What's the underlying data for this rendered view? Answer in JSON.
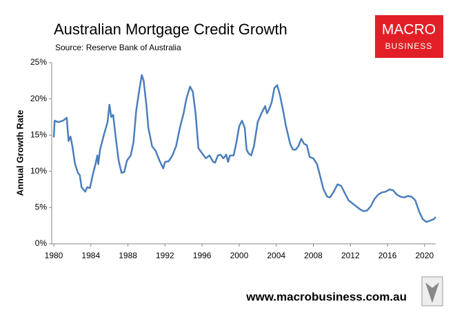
{
  "chart_data": {
    "type": "line",
    "title": "Australian Mortgage Credit Growth",
    "subtitle": "Source: Reserve Bank of Australia",
    "ylabel": "Annual Growth Rate",
    "logo": [
      "MACRO",
      "BUSINESS"
    ],
    "footer": "www.macrobusiness.com.au",
    "x": [
      1980.0,
      1980.1,
      1980.5,
      1981.0,
      1981.4,
      1981.6,
      1981.8,
      1982.0,
      1982.3,
      1982.6,
      1982.8,
      1983.0,
      1983.4,
      1983.6,
      1983.9,
      1984.2,
      1984.5,
      1984.7,
      1984.8,
      1985.0,
      1985.4,
      1985.8,
      1986.0,
      1986.2,
      1986.4,
      1986.7,
      1987.0,
      1987.3,
      1987.6,
      1987.9,
      1988.3,
      1988.6,
      1988.9,
      1989.2,
      1989.5,
      1989.7,
      1990.0,
      1990.2,
      1990.4,
      1990.6,
      1991.0,
      1991.4,
      1991.8,
      1992.0,
      1992.4,
      1992.8,
      1993.2,
      1993.6,
      1994.0,
      1994.3,
      1994.7,
      1995.0,
      1995.3,
      1995.6,
      1996.0,
      1996.4,
      1996.8,
      1997.2,
      1997.4,
      1997.7,
      1998.0,
      1998.3,
      1998.6,
      1998.8,
      1999.0,
      1999.4,
      1999.7,
      2000.0,
      2000.3,
      2000.6,
      2000.8,
      2001.0,
      2001.3,
      2001.6,
      2002.0,
      2002.4,
      2002.8,
      2003.0,
      2003.2,
      2003.5,
      2003.8,
      2004.1,
      2004.4,
      2004.8,
      2005.0,
      2005.5,
      2005.8,
      2006.1,
      2006.4,
      2006.7,
      2007.0,
      2007.3,
      2007.6,
      2008.0,
      2008.4,
      2008.8,
      2009.1,
      2009.5,
      2009.8,
      2010.2,
      2010.6,
      2011.0,
      2011.4,
      2011.8,
      2012.2,
      2012.6,
      2013.0,
      2013.4,
      2013.8,
      2014.2,
      2014.6,
      2015.0,
      2015.4,
      2015.8,
      2016.2,
      2016.6,
      2017.0,
      2017.4,
      2017.8,
      2018.2,
      2018.6,
      2019.0,
      2019.4,
      2019.8,
      2020.2,
      2020.6,
      2021.0,
      2021.2
    ],
    "series": [
      {
        "name": "Mortgage credit growth",
        "color": "#4a7ebb",
        "values": [
          14.7,
          17.0,
          16.8,
          17.0,
          17.4,
          14.2,
          14.8,
          13.5,
          11.0,
          9.8,
          9.5,
          7.8,
          7.2,
          7.8,
          7.7,
          9.5,
          11.0,
          12.2,
          11.0,
          13.0,
          15.0,
          16.8,
          19.2,
          17.5,
          17.8,
          14.5,
          11.5,
          9.8,
          9.9,
          11.5,
          12.2,
          14.0,
          18.5,
          21.0,
          23.3,
          22.5,
          19.0,
          16.0,
          14.8,
          13.5,
          12.8,
          11.5,
          10.4,
          11.3,
          11.4,
          12.2,
          13.5,
          16.0,
          18.0,
          20.0,
          21.7,
          21.0,
          18.0,
          13.2,
          12.5,
          11.8,
          12.2,
          11.3,
          11.2,
          12.2,
          12.3,
          11.8,
          12.3,
          11.3,
          12.2,
          12.2,
          14.0,
          16.2,
          17.0,
          16.0,
          13.0,
          12.5,
          12.2,
          13.5,
          16.8,
          18.0,
          19.0,
          18.0,
          18.5,
          19.5,
          21.5,
          21.9,
          20.5,
          18.0,
          16.5,
          13.8,
          13.0,
          13.0,
          13.5,
          14.5,
          13.8,
          13.6,
          12.0,
          11.8,
          11.0,
          9.0,
          7.5,
          6.5,
          6.4,
          7.2,
          8.2,
          8.0,
          7.0,
          6.0,
          5.6,
          5.2,
          4.8,
          4.5,
          4.6,
          5.2,
          6.2,
          6.8,
          7.1,
          7.2,
          7.5,
          7.4,
          6.8,
          6.5,
          6.4,
          6.6,
          6.5,
          6.0,
          4.5,
          3.4,
          3.0,
          3.2,
          3.4,
          3.7
        ]
      }
    ],
    "xlim": [
      1980,
      2021.2
    ],
    "xticks": [
      1980,
      1984,
      1988,
      1992,
      1996,
      2000,
      2004,
      2008,
      2012,
      2016,
      2020
    ],
    "ylim": [
      0,
      25
    ],
    "yticks": [
      {
        "value": 0,
        "label": "0%"
      },
      {
        "value": 5,
        "label": "5%"
      },
      {
        "value": 10,
        "label": "10%"
      },
      {
        "value": 15,
        "label": "15%"
      },
      {
        "value": 20,
        "label": "20%"
      },
      {
        "value": 25,
        "label": "25%"
      }
    ],
    "grid": false
  }
}
